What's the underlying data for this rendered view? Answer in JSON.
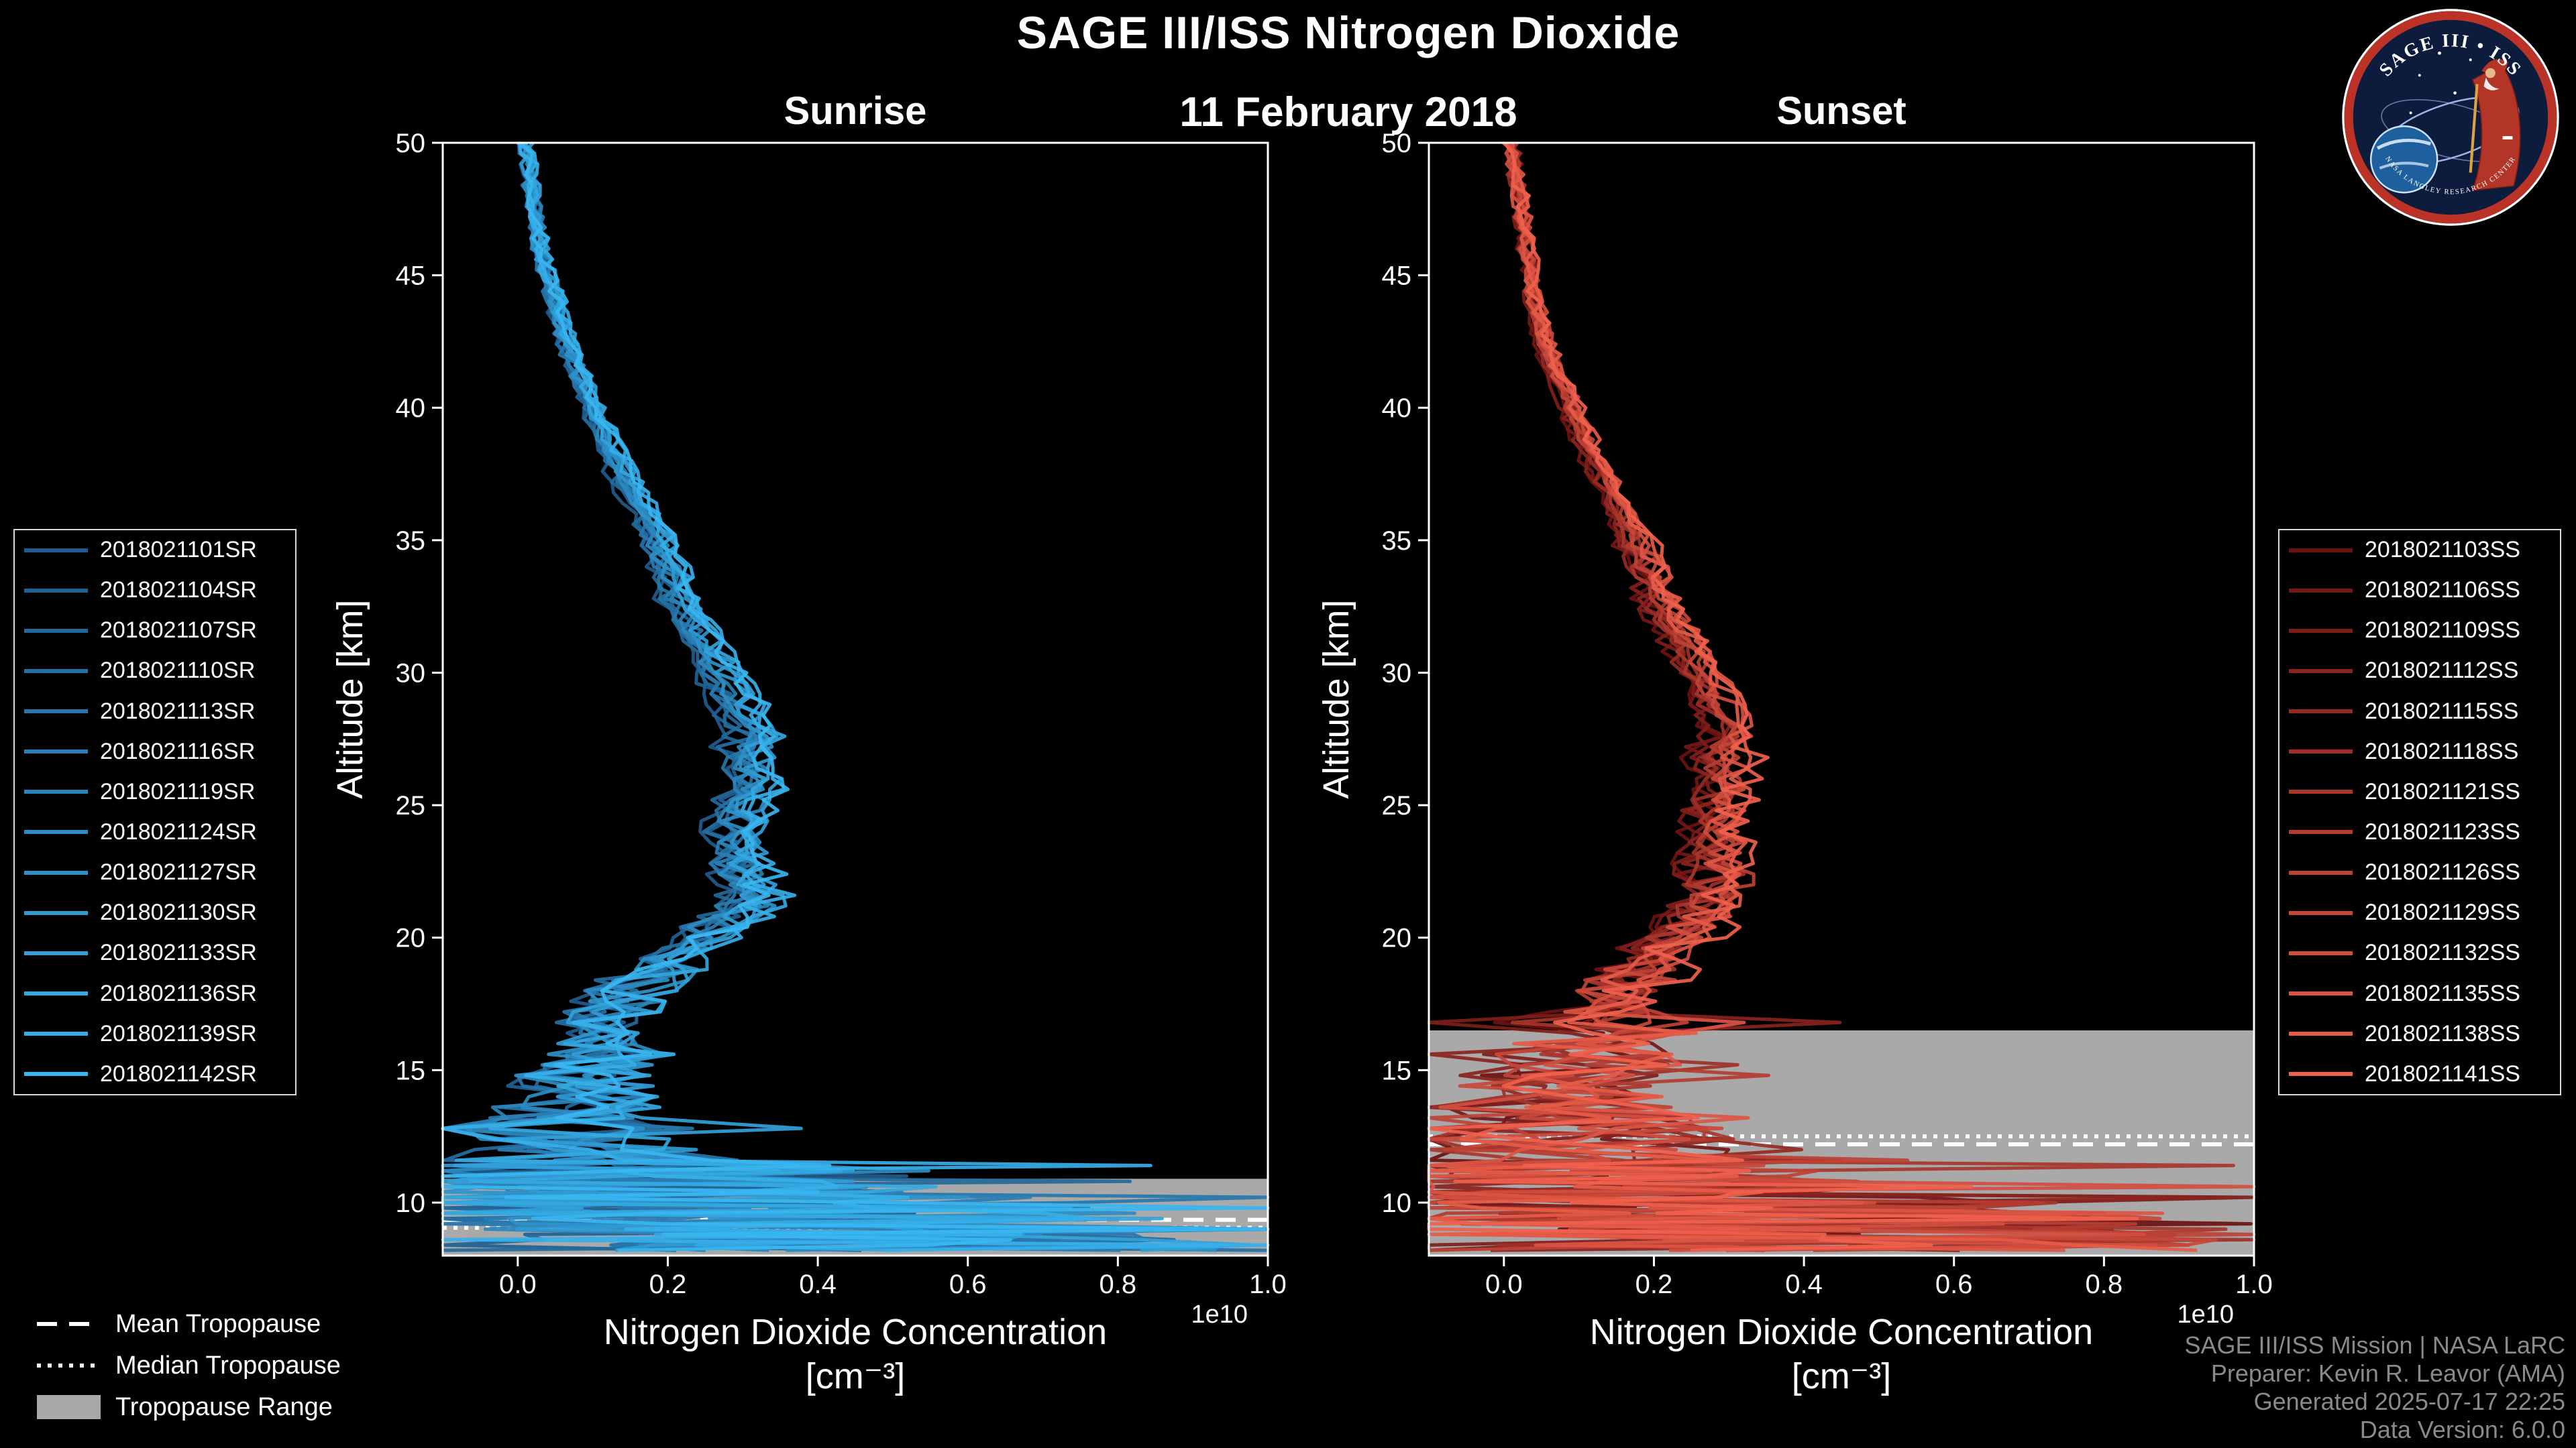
{
  "header": {
    "title": "SAGE III/ISS Nitrogen Dioxide",
    "date": "11 February 2018"
  },
  "tropopause_legend": {
    "mean": "Mean Tropopause",
    "median": "Median Tropopause",
    "range": "Tropopause Range"
  },
  "credits": {
    "line1": "SAGE III/ISS Mission | NASA LaRC",
    "line2": "Preparer: Kevin R. Leavor (AMA)",
    "line3": "Generated 2025-07-17 22:25",
    "line4": "Data Version: 6.0.0"
  },
  "logo": {
    "title": "SAGE III • ISS",
    "arc_text": "NASA LANGLEY RESEARCH CENTER"
  },
  "colors": {
    "background": "#000000",
    "axis": "#ffffff",
    "tropopause_band": "#a9a9a9",
    "credits_gray": "#8a8a8a"
  },
  "chart_data": [
    {
      "type": "line",
      "panel": "sunrise",
      "title": "Sunrise",
      "xlabel": "Nitrogen Dioxide Concentration",
      "xlabel_units": "[cm⁻³]",
      "ylabel": "Altitude [km]",
      "x_offset_label": "1e10",
      "xlim": [
        -0.1,
        1.0
      ],
      "ylim": [
        8,
        50
      ],
      "xticks": [
        0.0,
        0.2,
        0.4,
        0.6,
        0.8,
        1.0
      ],
      "xtick_labels": [
        "0.0",
        "0.2",
        "0.4",
        "0.6",
        "0.8",
        "1.0"
      ],
      "yticks": [
        10,
        15,
        20,
        25,
        30,
        35,
        40,
        45,
        50
      ],
      "ytick_labels": [
        "10",
        "15",
        "20",
        "25",
        "30",
        "35",
        "40",
        "45",
        "50"
      ],
      "grid": false,
      "legend_position": "outside-left",
      "base_profile": {
        "altitude": [
          8,
          8.5,
          9,
          9.5,
          10,
          11,
          12,
          13,
          14,
          15,
          16,
          17,
          18,
          19,
          20,
          21,
          22,
          24,
          26,
          28,
          30,
          32,
          34,
          36,
          38,
          40,
          42,
          44,
          46,
          48,
          50
        ],
        "concentration": [
          0.45,
          0.5,
          0.45,
          0.35,
          0.25,
          0.12,
          0.09,
          0.07,
          0.08,
          0.09,
          0.1,
          0.12,
          0.15,
          0.19,
          0.24,
          0.3,
          0.31,
          0.29,
          0.31,
          0.31,
          0.27,
          0.23,
          0.2,
          0.17,
          0.13,
          0.1,
          0.07,
          0.05,
          0.03,
          0.02,
          0.01
        ]
      },
      "noise_bands": [
        {
          "min": 35,
          "amp": 0.012
        },
        {
          "min": 28,
          "amp": 0.018
        },
        {
          "min": 23,
          "amp": 0.028
        },
        {
          "min": 19,
          "amp": 0.04
        },
        {
          "min": 16,
          "amp": 0.06
        },
        {
          "min": 13,
          "amp": 0.11
        },
        {
          "min": 11.5,
          "amp": 0.2
        },
        {
          "min": 10.3,
          "amp": 0.33
        },
        {
          "min": 0,
          "amp": 0.5
        }
      ],
      "spike": {
        "below_alt": 13,
        "prob": 0.18,
        "factor": 2.4
      },
      "tropopause": {
        "mean_km": 9.35,
        "median_km": 9.05,
        "range_km": [
          8,
          10.9
        ]
      },
      "series": [
        {
          "name": "2018021101SR",
          "color": "#1f5b8d",
          "seed": 101
        },
        {
          "name": "2018021104SR",
          "color": "#216295",
          "seed": 102
        },
        {
          "name": "2018021107SR",
          "color": "#23699c",
          "seed": 103
        },
        {
          "name": "2018021110SR",
          "color": "#2570a4",
          "seed": 104
        },
        {
          "name": "2018021113SR",
          "color": "#2777ac",
          "seed": 105
        },
        {
          "name": "2018021116SR",
          "color": "#297eb3",
          "seed": 106
        },
        {
          "name": "2018021119SR",
          "color": "#2a85bb",
          "seed": 107
        },
        {
          "name": "2018021124SR",
          "color": "#2c8cc3",
          "seed": 108
        },
        {
          "name": "2018021127SR",
          "color": "#2e93ca",
          "seed": 109
        },
        {
          "name": "2018021130SR",
          "color": "#309ad2",
          "seed": 110
        },
        {
          "name": "2018021133SR",
          "color": "#32a1da",
          "seed": 111
        },
        {
          "name": "2018021136SR",
          "color": "#34a8e1",
          "seed": 112
        },
        {
          "name": "2018021139SR",
          "color": "#36afe9",
          "seed": 113
        },
        {
          "name": "2018021142SR",
          "color": "#38b6f1",
          "seed": 114
        }
      ]
    },
    {
      "type": "line",
      "panel": "sunset",
      "title": "Sunset",
      "xlabel": "Nitrogen Dioxide Concentration",
      "xlabel_units": "[cm⁻³]",
      "ylabel": "Altitude [km]",
      "x_offset_label": "1e10",
      "xlim": [
        -0.1,
        1.0
      ],
      "ylim": [
        8,
        50
      ],
      "xticks": [
        0.0,
        0.2,
        0.4,
        0.6,
        0.8,
        1.0
      ],
      "xtick_labels": [
        "0.0",
        "0.2",
        "0.4",
        "0.6",
        "0.8",
        "1.0"
      ],
      "yticks": [
        10,
        15,
        20,
        25,
        30,
        35,
        40,
        45,
        50
      ],
      "ytick_labels": [
        "10",
        "15",
        "20",
        "25",
        "30",
        "35",
        "40",
        "45",
        "50"
      ],
      "grid": false,
      "legend_position": "outside-right",
      "base_profile": {
        "altitude": [
          8,
          8.5,
          9,
          9.5,
          10,
          11,
          12,
          13,
          14,
          15,
          16,
          17,
          18,
          19,
          20,
          21,
          22,
          24,
          26,
          28,
          30,
          32,
          34,
          36,
          38,
          40,
          42,
          44,
          46,
          48,
          50
        ],
        "concentration": [
          0.45,
          0.5,
          0.45,
          0.35,
          0.25,
          0.12,
          0.09,
          0.08,
          0.09,
          0.1,
          0.11,
          0.13,
          0.16,
          0.19,
          0.23,
          0.27,
          0.29,
          0.28,
          0.29,
          0.3,
          0.26,
          0.22,
          0.19,
          0.16,
          0.12,
          0.09,
          0.06,
          0.04,
          0.03,
          0.02,
          0.01
        ]
      },
      "noise_bands": [
        {
          "min": 35,
          "amp": 0.012
        },
        {
          "min": 28,
          "amp": 0.02
        },
        {
          "min": 23,
          "amp": 0.03
        },
        {
          "min": 19,
          "amp": 0.045
        },
        {
          "min": 17,
          "amp": 0.07
        },
        {
          "min": 14,
          "amp": 0.13
        },
        {
          "min": 11.5,
          "amp": 0.22
        },
        {
          "min": 10.3,
          "amp": 0.35
        },
        {
          "min": 0,
          "amp": 0.5
        }
      ],
      "spike": {
        "below_alt": 17,
        "prob": 0.15,
        "factor": 2.6
      },
      "tropopause": {
        "mean_km": 12.2,
        "median_km": 12.5,
        "range_km": [
          8,
          16.5
        ]
      },
      "series": [
        {
          "name": "2018021103SS",
          "color": "#6b1111",
          "seed": 201
        },
        {
          "name": "2018021106SS",
          "color": "#751716",
          "seed": 202
        },
        {
          "name": "2018021109SS",
          "color": "#7f1d1a",
          "seed": 203
        },
        {
          "name": "2018021112SS",
          "color": "#8a231f",
          "seed": 204
        },
        {
          "name": "2018021115SS",
          "color": "#942a23",
          "seed": 205
        },
        {
          "name": "2018021118SS",
          "color": "#9e3028",
          "seed": 206
        },
        {
          "name": "2018021121SS",
          "color": "#a8362d",
          "seed": 207
        },
        {
          "name": "2018021123SS",
          "color": "#b33c31",
          "seed": 208
        },
        {
          "name": "2018021126SS",
          "color": "#bd4236",
          "seed": 209
        },
        {
          "name": "2018021129SS",
          "color": "#c7483a",
          "seed": 210
        },
        {
          "name": "2018021132SS",
          "color": "#d14e3f",
          "seed": 211
        },
        {
          "name": "2018021135SS",
          "color": "#dc5544",
          "seed": 212
        },
        {
          "name": "2018021138SS",
          "color": "#e65b48",
          "seed": 213
        },
        {
          "name": "2018021141SS",
          "color": "#f0614d",
          "seed": 214
        }
      ]
    }
  ]
}
